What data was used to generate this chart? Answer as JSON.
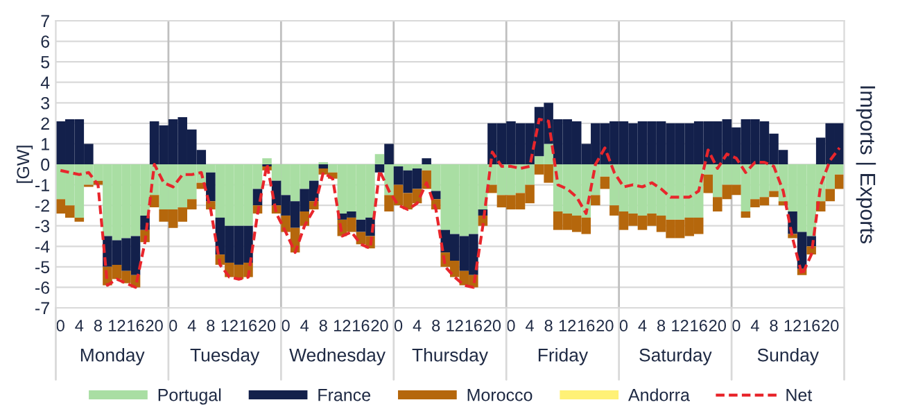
{
  "chart_data": {
    "type": "bar",
    "stacked": true,
    "ylabel": "[GW]",
    "y2label": "Imports | Exports",
    "categories": [
      "0",
      null,
      "4",
      null,
      "8",
      null,
      "12",
      null,
      "16",
      null,
      "20",
      null,
      "0",
      null,
      "4",
      null,
      "8",
      null,
      "12",
      null,
      "16",
      null,
      "20",
      null,
      "0",
      null,
      "4",
      null,
      "8",
      null,
      "12",
      null,
      "16",
      null,
      "20",
      null,
      "0",
      null,
      "4",
      null,
      "8",
      null,
      "12",
      null,
      "16",
      null,
      "20",
      null,
      "0",
      null,
      "4",
      null,
      "8",
      null,
      "12",
      null,
      "16",
      null,
      "20",
      null,
      "0",
      null,
      "4",
      null,
      "8",
      null,
      "12",
      null,
      "16",
      null,
      "20",
      null,
      "0",
      null,
      "4",
      null,
      "8",
      null,
      "12",
      null,
      "16",
      null,
      "20",
      null
    ],
    "annotations": [
      "Monday",
      "Tuesday",
      "Wednesday",
      "Thursday",
      "Friday",
      "Saturday",
      "Sunday"
    ],
    "ylim": [
      -7,
      7
    ],
    "yticks": [
      -7,
      -6,
      -5,
      -4,
      -3,
      -2,
      -1,
      0,
      1,
      2,
      3,
      4,
      5,
      6,
      7
    ],
    "grid": "y",
    "legend": "bottom",
    "series": [
      {
        "name": "Portugal",
        "color": "#a9dea3",
        "values": [
          -1.7,
          -2.0,
          -2.6,
          -1.0,
          -0.8,
          -3.5,
          -3.7,
          -3.6,
          -3.5,
          -2.5,
          -1.5,
          -2.2,
          -2.2,
          -2.1,
          -1.7,
          -0.9,
          -0.4,
          -2.6,
          -3.0,
          -3.0,
          -3.0,
          -1.2,
          0.3,
          -0.8,
          -1.5,
          -1.8,
          -1.2,
          -0.8,
          0.1,
          -0.4,
          -2.4,
          -2.3,
          -2.7,
          -2.6,
          0.5,
          -1.5,
          -0.1,
          -0.3,
          -0.2,
          -0.3,
          -1.3,
          -3.2,
          -3.4,
          -3.5,
          -3.4,
          -2.2,
          -1.0,
          -1.5,
          -1.5,
          -1.4,
          -1.0,
          0.4,
          1.0,
          -2.3,
          -2.4,
          -2.5,
          -2.6,
          -1.5,
          -0.6,
          -2.0,
          -2.3,
          -2.4,
          -2.5,
          -2.4,
          -2.5,
          -2.7,
          -2.7,
          -2.6,
          -2.6,
          -0.5,
          -1.6,
          -1.0,
          -1.0,
          -2.3,
          -1.7,
          -1.6,
          -1.3,
          -1.8,
          -2.3,
          -3.3,
          -3.5,
          -1.8,
          -1.2,
          -0.5
        ]
      },
      {
        "name": "France",
        "color": "#13204b",
        "values": [
          2.1,
          2.2,
          2.2,
          1.0,
          0.0,
          -1.5,
          -1.2,
          -1.6,
          -1.9,
          -0.7,
          2.1,
          1.9,
          2.2,
          2.3,
          1.7,
          0.7,
          -1.4,
          -1.8,
          -1.8,
          -1.9,
          -1.8,
          -0.8,
          -0.1,
          -1.2,
          -1.0,
          -1.3,
          -1.1,
          -1.0,
          -0.2,
          0.0,
          -0.3,
          -0.3,
          -0.6,
          -0.9,
          -0.4,
          1.0,
          -0.9,
          -1.1,
          -1.0,
          0.3,
          -0.4,
          -1.1,
          -1.3,
          -1.7,
          -2.0,
          -0.3,
          2.0,
          2.0,
          2.1,
          2.0,
          2.0,
          2.4,
          2.0,
          2.2,
          2.2,
          2.1,
          1.0,
          2.0,
          2.0,
          2.1,
          2.1,
          2.0,
          2.1,
          2.1,
          2.1,
          2.0,
          2.0,
          2.0,
          2.1,
          2.1,
          2.1,
          2.2,
          1.8,
          2.2,
          2.2,
          2.1,
          1.5,
          0.7,
          -1.1,
          -1.8,
          -0.5,
          1.3,
          2.0,
          2.0
        ]
      },
      {
        "name": "Morocco",
        "color": "#b5670c",
        "values": [
          -0.7,
          -0.6,
          -0.2,
          -0.1,
          -0.2,
          -0.9,
          -0.7,
          -0.6,
          -0.6,
          -0.6,
          -0.6,
          -0.6,
          -0.9,
          -0.7,
          -0.5,
          -0.3,
          -0.4,
          -0.5,
          -0.7,
          -0.7,
          -0.7,
          -0.4,
          -0.2,
          -0.4,
          -0.8,
          -1.2,
          -0.7,
          -0.4,
          -0.3,
          -0.3,
          -0.8,
          -0.7,
          -0.6,
          -0.6,
          null,
          -0.8,
          -1.0,
          -0.8,
          -0.7,
          -0.9,
          -0.5,
          -0.7,
          -0.8,
          -0.7,
          -0.6,
          -0.5,
          -0.4,
          -0.6,
          -0.7,
          -0.8,
          -0.9,
          -0.5,
          -0.9,
          -0.9,
          -0.8,
          -0.8,
          -0.8,
          -0.5,
          -0.6,
          -0.5,
          -0.9,
          -0.6,
          -0.7,
          -0.6,
          -0.8,
          -0.9,
          -0.9,
          -0.9,
          -0.8,
          -0.9,
          -0.7,
          -0.7,
          -0.5,
          -0.3,
          -0.4,
          -0.4,
          -0.3,
          -0.2,
          -0.2,
          -0.3,
          -0.4,
          -0.5,
          -0.6,
          -0.7
        ]
      },
      {
        "name": "Andorra",
        "color": "#fff176",
        "values": [
          null,
          null,
          null,
          null,
          null,
          null,
          null,
          null,
          null,
          null,
          null,
          null,
          null,
          null,
          null,
          null,
          null,
          null,
          null,
          null,
          null,
          null,
          null,
          null,
          null,
          null,
          null,
          null,
          null,
          null,
          null,
          null,
          null,
          null,
          null,
          null,
          null,
          null,
          null,
          null,
          null,
          null,
          null,
          null,
          null,
          null,
          null,
          null,
          null,
          null,
          null,
          null,
          null,
          null,
          null,
          null,
          null,
          null,
          null,
          null,
          null,
          null,
          null,
          null,
          null,
          null,
          null,
          null,
          null,
          null,
          null,
          null,
          null,
          null,
          null,
          null,
          null,
          null,
          null,
          null,
          null,
          null,
          null,
          null
        ]
      },
      {
        "name": "Net",
        "type": "line",
        "line_style": "dashed",
        "color": "#e8262c",
        "values": [
          -0.3,
          -0.4,
          -0.5,
          -0.4,
          -1.0,
          -5.9,
          -5.6,
          -5.8,
          -6.0,
          -3.8,
          0.0,
          -0.9,
          -1.1,
          -0.5,
          -0.5,
          -0.4,
          -2.2,
          -4.9,
          -5.5,
          -5.6,
          -5.5,
          -2.4,
          0.0,
          -2.4,
          -3.3,
          -4.3,
          -3.0,
          -2.2,
          -0.4,
          -0.7,
          -3.5,
          -3.3,
          -3.9,
          -4.1,
          -0.3,
          -1.3,
          -2.0,
          -2.2,
          -1.9,
          -0.9,
          -2.2,
          -5.0,
          -5.5,
          -5.9,
          -6.0,
          -3.0,
          0.6,
          -0.1,
          -0.1,
          -0.2,
          -0.1,
          2.2,
          2.1,
          -1.0,
          -1.2,
          -1.6,
          -2.4,
          0.0,
          0.8,
          -0.4,
          -1.1,
          -1.0,
          -1.1,
          -0.9,
          -1.2,
          -1.6,
          -1.6,
          -1.6,
          -1.3,
          0.7,
          -0.2,
          0.5,
          0.3,
          -0.4,
          0.1,
          0.1,
          -0.1,
          -1.3,
          -3.6,
          -5.4,
          -4.4,
          -1.0,
          0.2,
          0.8
        ]
      }
    ]
  }
}
